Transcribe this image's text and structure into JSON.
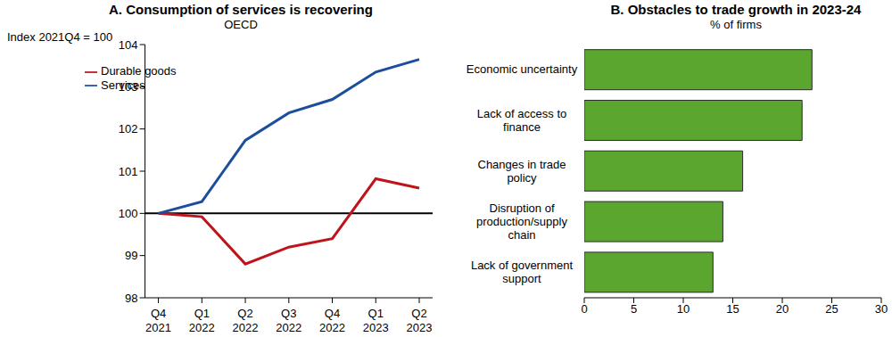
{
  "chart_data": [
    {
      "type": "line",
      "title": "A. Consumption of services is recovering",
      "subtitle": "OECD",
      "y_label": "Index 2021Q4 = 100",
      "categories": [
        "Q4 2021",
        "Q1 2022",
        "Q2 2022",
        "Q3 2022",
        "Q4 2022",
        "Q1 2023",
        "Q2 2023"
      ],
      "series": [
        {
          "name": "Durable goods",
          "color": "#c0141c",
          "values": [
            100,
            99.92,
            98.8,
            99.2,
            99.4,
            100.82,
            100.6
          ]
        },
        {
          "name": "Services",
          "color": "#1c4e9c",
          "values": [
            100,
            100.28,
            101.73,
            102.38,
            102.7,
            103.35,
            103.65
          ]
        }
      ],
      "ylim": [
        98,
        104
      ],
      "yticks": [
        98,
        99,
        100,
        101,
        102,
        103,
        104
      ],
      "reference_line": 100,
      "grid": false,
      "legend": "upper left"
    },
    {
      "type": "bar",
      "orientation": "horizontal",
      "title": "B. Obstacles to trade growth in 2023-24",
      "subtitle": "% of firms",
      "categories": [
        "Economic uncertainty",
        "Lack of access to finance",
        "Changes in trade policy",
        "Disruption of production/supply chain",
        "Lack of government support"
      ],
      "values": [
        23,
        22,
        16,
        14,
        13
      ],
      "color": "#5ba62e",
      "xlim": [
        0,
        30
      ],
      "xticks": [
        0,
        5,
        10,
        15,
        20,
        25,
        30
      ],
      "grid": false
    }
  ]
}
